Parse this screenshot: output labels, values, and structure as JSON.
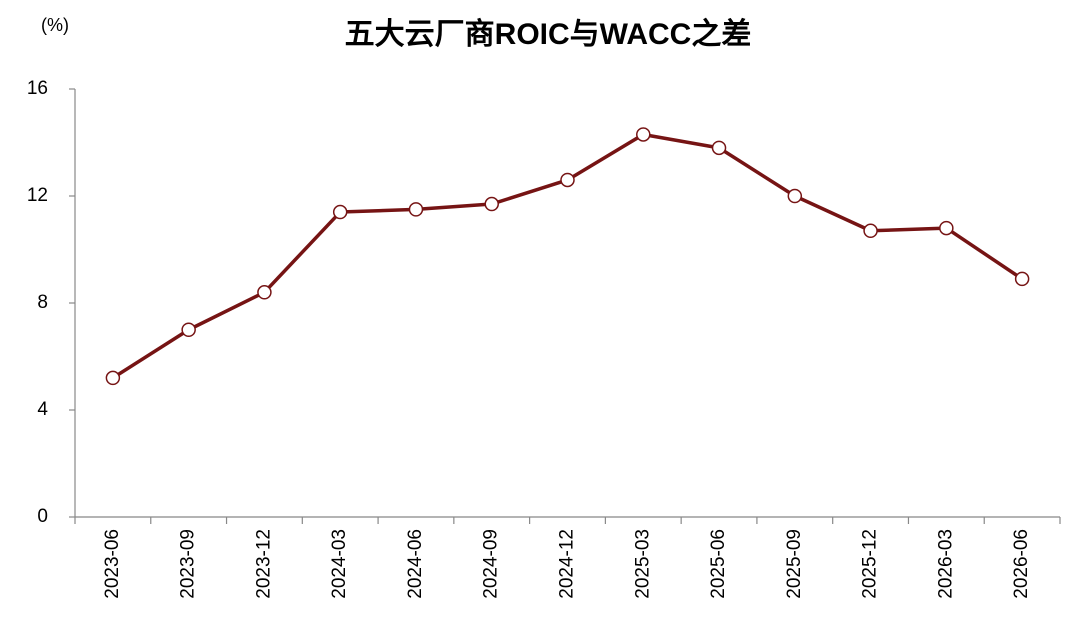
{
  "chart_data": {
    "type": "line",
    "title": "五大云厂商ROIC与WACC之差",
    "y_unit": "(%)",
    "categories": [
      "2023-06",
      "2023-09",
      "2023-12",
      "2024-03",
      "2024-06",
      "2024-09",
      "2024-12",
      "2025-03",
      "2025-06",
      "2025-09",
      "2025-12",
      "2026-03",
      "2026-06"
    ],
    "series": [
      {
        "name": "ROIC与WACC之差",
        "color": "#761414",
        "values": [
          5.2,
          7.0,
          8.4,
          11.4,
          11.5,
          11.7,
          12.6,
          14.3,
          13.8,
          12.0,
          10.7,
          10.8,
          8.9
        ]
      }
    ],
    "ylim": [
      0,
      16
    ],
    "yticks": [
      0,
      4,
      8,
      12,
      16
    ],
    "grid": false
  }
}
